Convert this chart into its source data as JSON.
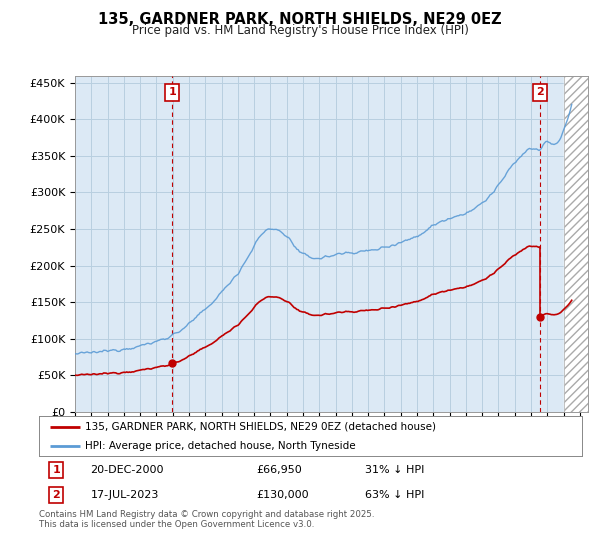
{
  "title": "135, GARDNER PARK, NORTH SHIELDS, NE29 0EZ",
  "subtitle": "Price paid vs. HM Land Registry's House Price Index (HPI)",
  "legend_line1": "135, GARDNER PARK, NORTH SHIELDS, NE29 0EZ (detached house)",
  "legend_line2": "HPI: Average price, detached house, North Tyneside",
  "footnote": "Contains HM Land Registry data © Crown copyright and database right 2025.\nThis data is licensed under the Open Government Licence v3.0.",
  "annotation1_date": "20-DEC-2000",
  "annotation1_price": "£66,950",
  "annotation1_hpi": "31% ↓ HPI",
  "annotation2_date": "17-JUL-2023",
  "annotation2_price": "£130,000",
  "annotation2_hpi": "63% ↓ HPI",
  "sale1_year": 2000.96,
  "sale1_price": 66950,
  "sale2_year": 2023.54,
  "sale2_price": 130000,
  "hpi_color": "#5b9bd5",
  "price_color": "#c00000",
  "annotation_color": "#c00000",
  "bg_color": "#ffffff",
  "chart_bg_color": "#dce9f5",
  "grid_color": "#b8cfe0",
  "ylim": [
    0,
    460000
  ],
  "xlim_start": 1995.0,
  "xlim_end": 2026.5,
  "future_start": 2025.0
}
